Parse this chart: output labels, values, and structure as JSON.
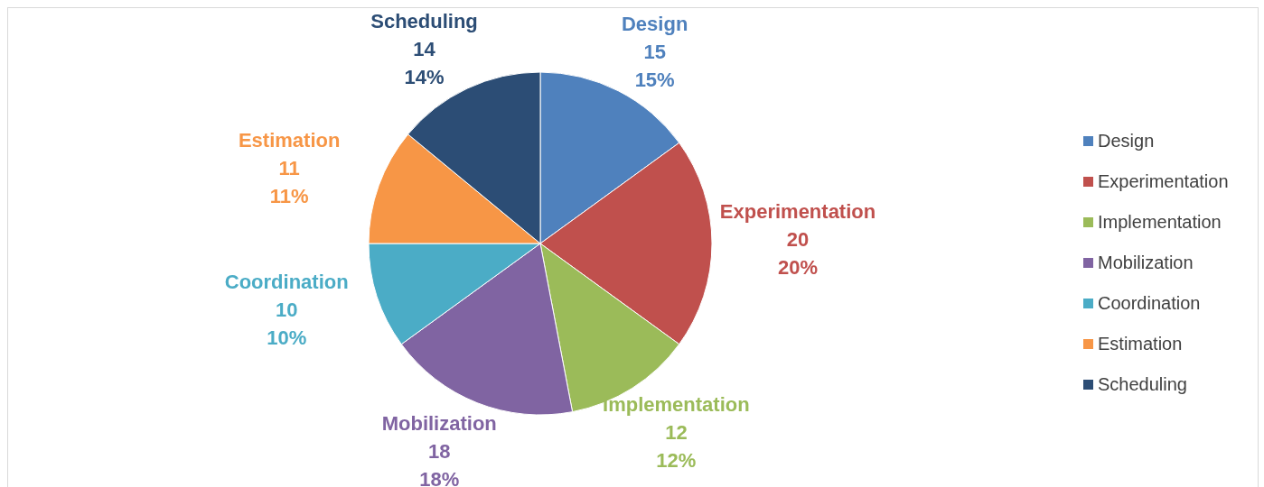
{
  "chart_data": {
    "type": "pie",
    "categories": [
      "Design",
      "Experimentation",
      "Implementation",
      "Mobilization",
      "Coordination",
      "Estimation",
      "Scheduling"
    ],
    "values": [
      15,
      20,
      12,
      18,
      10,
      11,
      14
    ],
    "colors": [
      "#4f81bd",
      "#c0504d",
      "#9bbb59",
      "#8064a2",
      "#4bacc6",
      "#f79646",
      "#2c4d75"
    ],
    "data_labels": true,
    "value_labels": [
      "15\n15%",
      "20\n20%",
      "12\n12%",
      "18\n18%",
      "10\n10%",
      "11\n11%",
      "14\n14%"
    ],
    "legend": "right"
  }
}
